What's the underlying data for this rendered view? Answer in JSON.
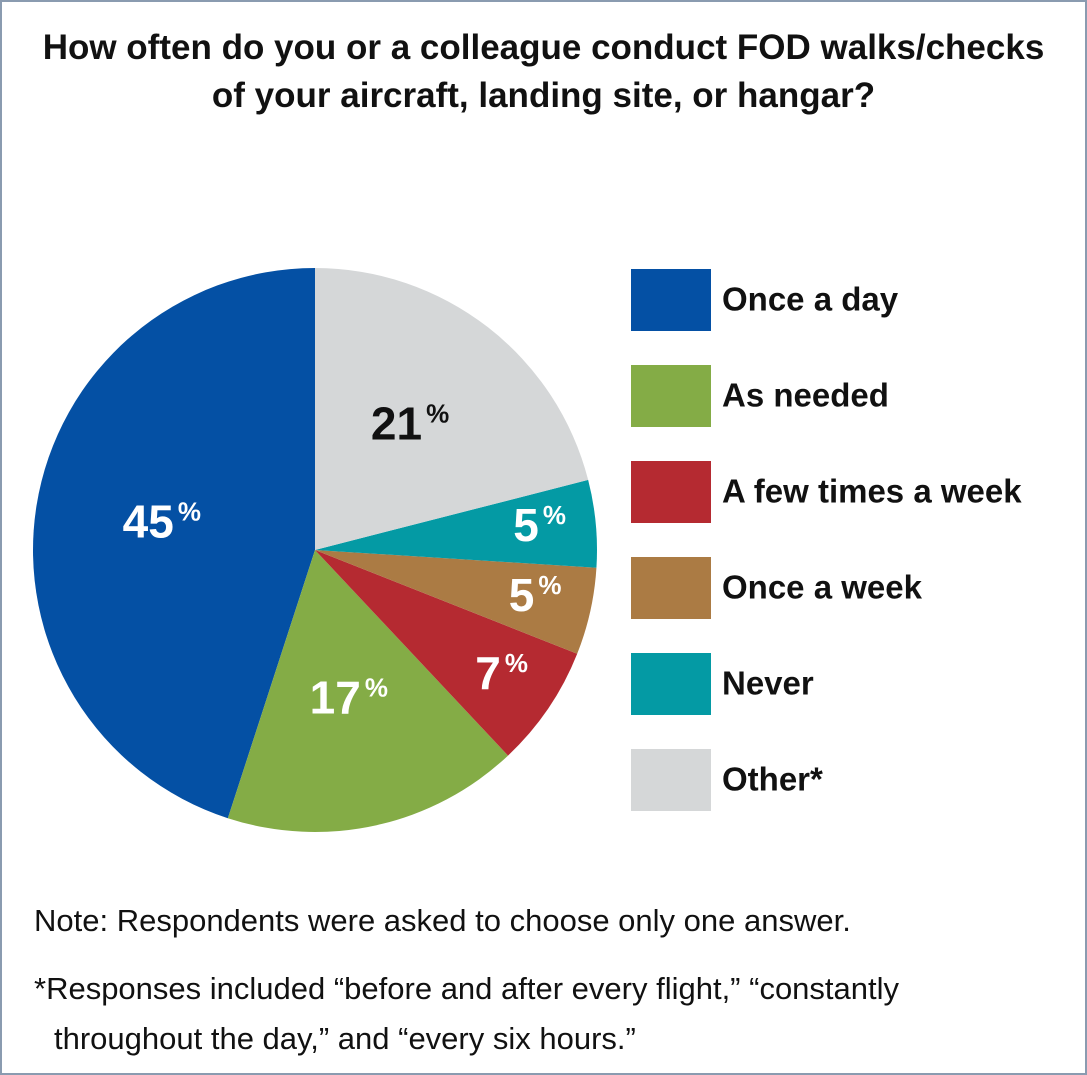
{
  "chart_data": {
    "type": "pie",
    "title": "How often do you or a colleague conduct FOD walks/checks of your aircraft, landing site, or hangar?",
    "categories": [
      "Once a day",
      "As needed",
      "A few times a week",
      "Once a week",
      "Never",
      "Other*"
    ],
    "values": [
      45,
      17,
      7,
      5,
      5,
      21
    ],
    "value_labels": [
      "45%",
      "17%",
      "7%",
      "5%",
      "5%",
      "21%"
    ],
    "colors": [
      "#0450a4",
      "#84ac46",
      "#b52a31",
      "#ab7b44",
      "#049aa4",
      "#d5d7d8"
    ],
    "direction": "counterclockwise",
    "start": "top",
    "legend": "right",
    "notes": [
      "Note: Respondents were asked to choose only one answer.",
      "*Responses included “before and after every flight,” “constantly throughout the day,” and “every six hours.”"
    ]
  }
}
